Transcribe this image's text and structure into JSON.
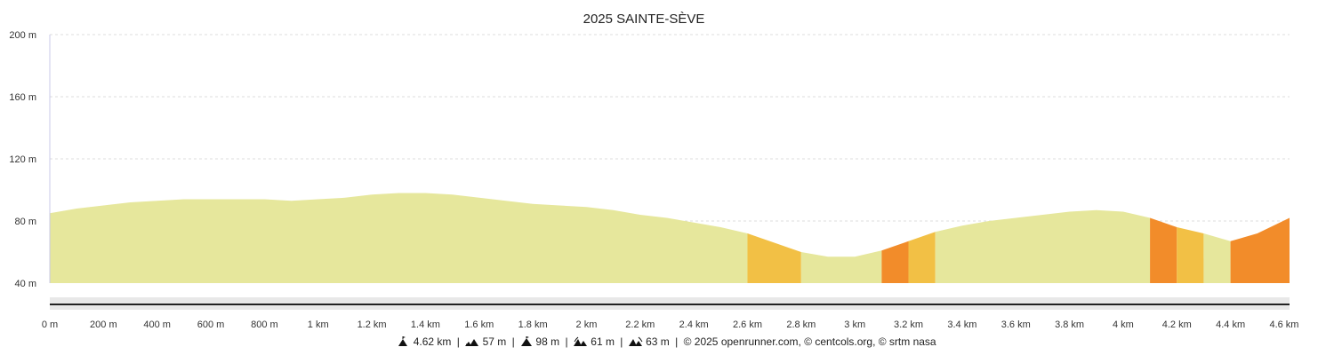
{
  "chart_data": {
    "type": "area",
    "title": "2025 SAINTE-SÈVE",
    "ylim": [
      40,
      200
    ],
    "xlim": [
      0,
      4.62
    ],
    "y_ticks": [
      {
        "value": 40,
        "label": "40 m"
      },
      {
        "value": 80,
        "label": "80 m"
      },
      {
        "value": 120,
        "label": "120 m"
      },
      {
        "value": 160,
        "label": "160 m"
      },
      {
        "value": 200,
        "label": "200 m"
      }
    ],
    "x_ticks": [
      {
        "value": 0,
        "label": "0 m"
      },
      {
        "value": 0.2,
        "label": "200 m"
      },
      {
        "value": 0.4,
        "label": "400 m"
      },
      {
        "value": 0.6,
        "label": "600 m"
      },
      {
        "value": 0.8,
        "label": "800 m"
      },
      {
        "value": 1.0,
        "label": "1 km"
      },
      {
        "value": 1.2,
        "label": "1.2 km"
      },
      {
        "value": 1.4,
        "label": "1.4 km"
      },
      {
        "value": 1.6,
        "label": "1.6 km"
      },
      {
        "value": 1.8,
        "label": "1.8 km"
      },
      {
        "value": 2.0,
        "label": "2 km"
      },
      {
        "value": 2.2,
        "label": "2.2 km"
      },
      {
        "value": 2.4,
        "label": "2.4 km"
      },
      {
        "value": 2.6,
        "label": "2.6 km"
      },
      {
        "value": 2.8,
        "label": "2.8 km"
      },
      {
        "value": 3.0,
        "label": "3 km"
      },
      {
        "value": 3.2,
        "label": "3.2 km"
      },
      {
        "value": 3.4,
        "label": "3.4 km"
      },
      {
        "value": 3.6,
        "label": "3.6 km"
      },
      {
        "value": 3.8,
        "label": "3.8 km"
      },
      {
        "value": 4.0,
        "label": "4 km"
      },
      {
        "value": 4.2,
        "label": "4.2 km"
      },
      {
        "value": 4.4,
        "label": "4.4 km"
      },
      {
        "value": 4.6,
        "label": "4.6 km"
      }
    ],
    "grid": true,
    "colors": {
      "flat": "#e6e79c",
      "moderate": "#f2c045",
      "steep": "#f28c2a",
      "grid": "#dddddd",
      "axis": "#c8c8e8",
      "navigator_bg": "#e8e8e8",
      "navigator_line": "#222222"
    },
    "profile": [
      [
        0.0,
        85
      ],
      [
        0.1,
        88
      ],
      [
        0.2,
        90
      ],
      [
        0.3,
        92
      ],
      [
        0.4,
        93
      ],
      [
        0.5,
        94
      ],
      [
        0.6,
        94
      ],
      [
        0.7,
        94
      ],
      [
        0.8,
        94
      ],
      [
        0.9,
        93
      ],
      [
        1.0,
        94
      ],
      [
        1.1,
        95
      ],
      [
        1.2,
        97
      ],
      [
        1.3,
        98
      ],
      [
        1.4,
        98
      ],
      [
        1.5,
        97
      ],
      [
        1.6,
        95
      ],
      [
        1.7,
        93
      ],
      [
        1.8,
        91
      ],
      [
        1.9,
        90
      ],
      [
        2.0,
        89
      ],
      [
        2.1,
        87
      ],
      [
        2.2,
        84
      ],
      [
        2.3,
        82
      ],
      [
        2.4,
        79
      ],
      [
        2.5,
        76
      ],
      [
        2.6,
        72
      ],
      [
        2.7,
        66
      ],
      [
        2.8,
        60
      ],
      [
        2.9,
        57
      ],
      [
        3.0,
        57
      ],
      [
        3.1,
        61
      ],
      [
        3.2,
        67
      ],
      [
        3.3,
        73
      ],
      [
        3.4,
        77
      ],
      [
        3.5,
        80
      ],
      [
        3.6,
        82
      ],
      [
        3.7,
        84
      ],
      [
        3.8,
        86
      ],
      [
        3.9,
        87
      ],
      [
        4.0,
        86
      ],
      [
        4.1,
        82
      ],
      [
        4.2,
        76
      ],
      [
        4.3,
        72
      ],
      [
        4.4,
        67
      ],
      [
        4.5,
        72
      ],
      [
        4.62,
        82
      ]
    ],
    "segments": [
      {
        "from": 0.0,
        "to": 2.6,
        "grade": "flat"
      },
      {
        "from": 2.6,
        "to": 2.8,
        "grade": "moderate"
      },
      {
        "from": 2.8,
        "to": 3.1,
        "grade": "flat"
      },
      {
        "from": 3.1,
        "to": 3.2,
        "grade": "steep"
      },
      {
        "from": 3.2,
        "to": 3.3,
        "grade": "moderate"
      },
      {
        "from": 3.3,
        "to": 4.1,
        "grade": "flat"
      },
      {
        "from": 4.1,
        "to": 4.2,
        "grade": "steep"
      },
      {
        "from": 4.2,
        "to": 4.3,
        "grade": "moderate"
      },
      {
        "from": 4.3,
        "to": 4.4,
        "grade": "flat"
      },
      {
        "from": 4.4,
        "to": 4.62,
        "grade": "steep"
      }
    ]
  },
  "footer": {
    "distance": "4.62 km",
    "min_alt": "57 m",
    "max_alt": "98 m",
    "ascent": "61 m",
    "descent": "63 m",
    "sep": "|",
    "credits": "© 2025 openrunner.com, © centcols.org, © srtm nasa"
  },
  "icons": {
    "distance": "distance-icon",
    "min_alt": "min-altitude-icon",
    "max_alt": "max-altitude-icon",
    "ascent": "ascent-icon",
    "descent": "descent-icon"
  }
}
